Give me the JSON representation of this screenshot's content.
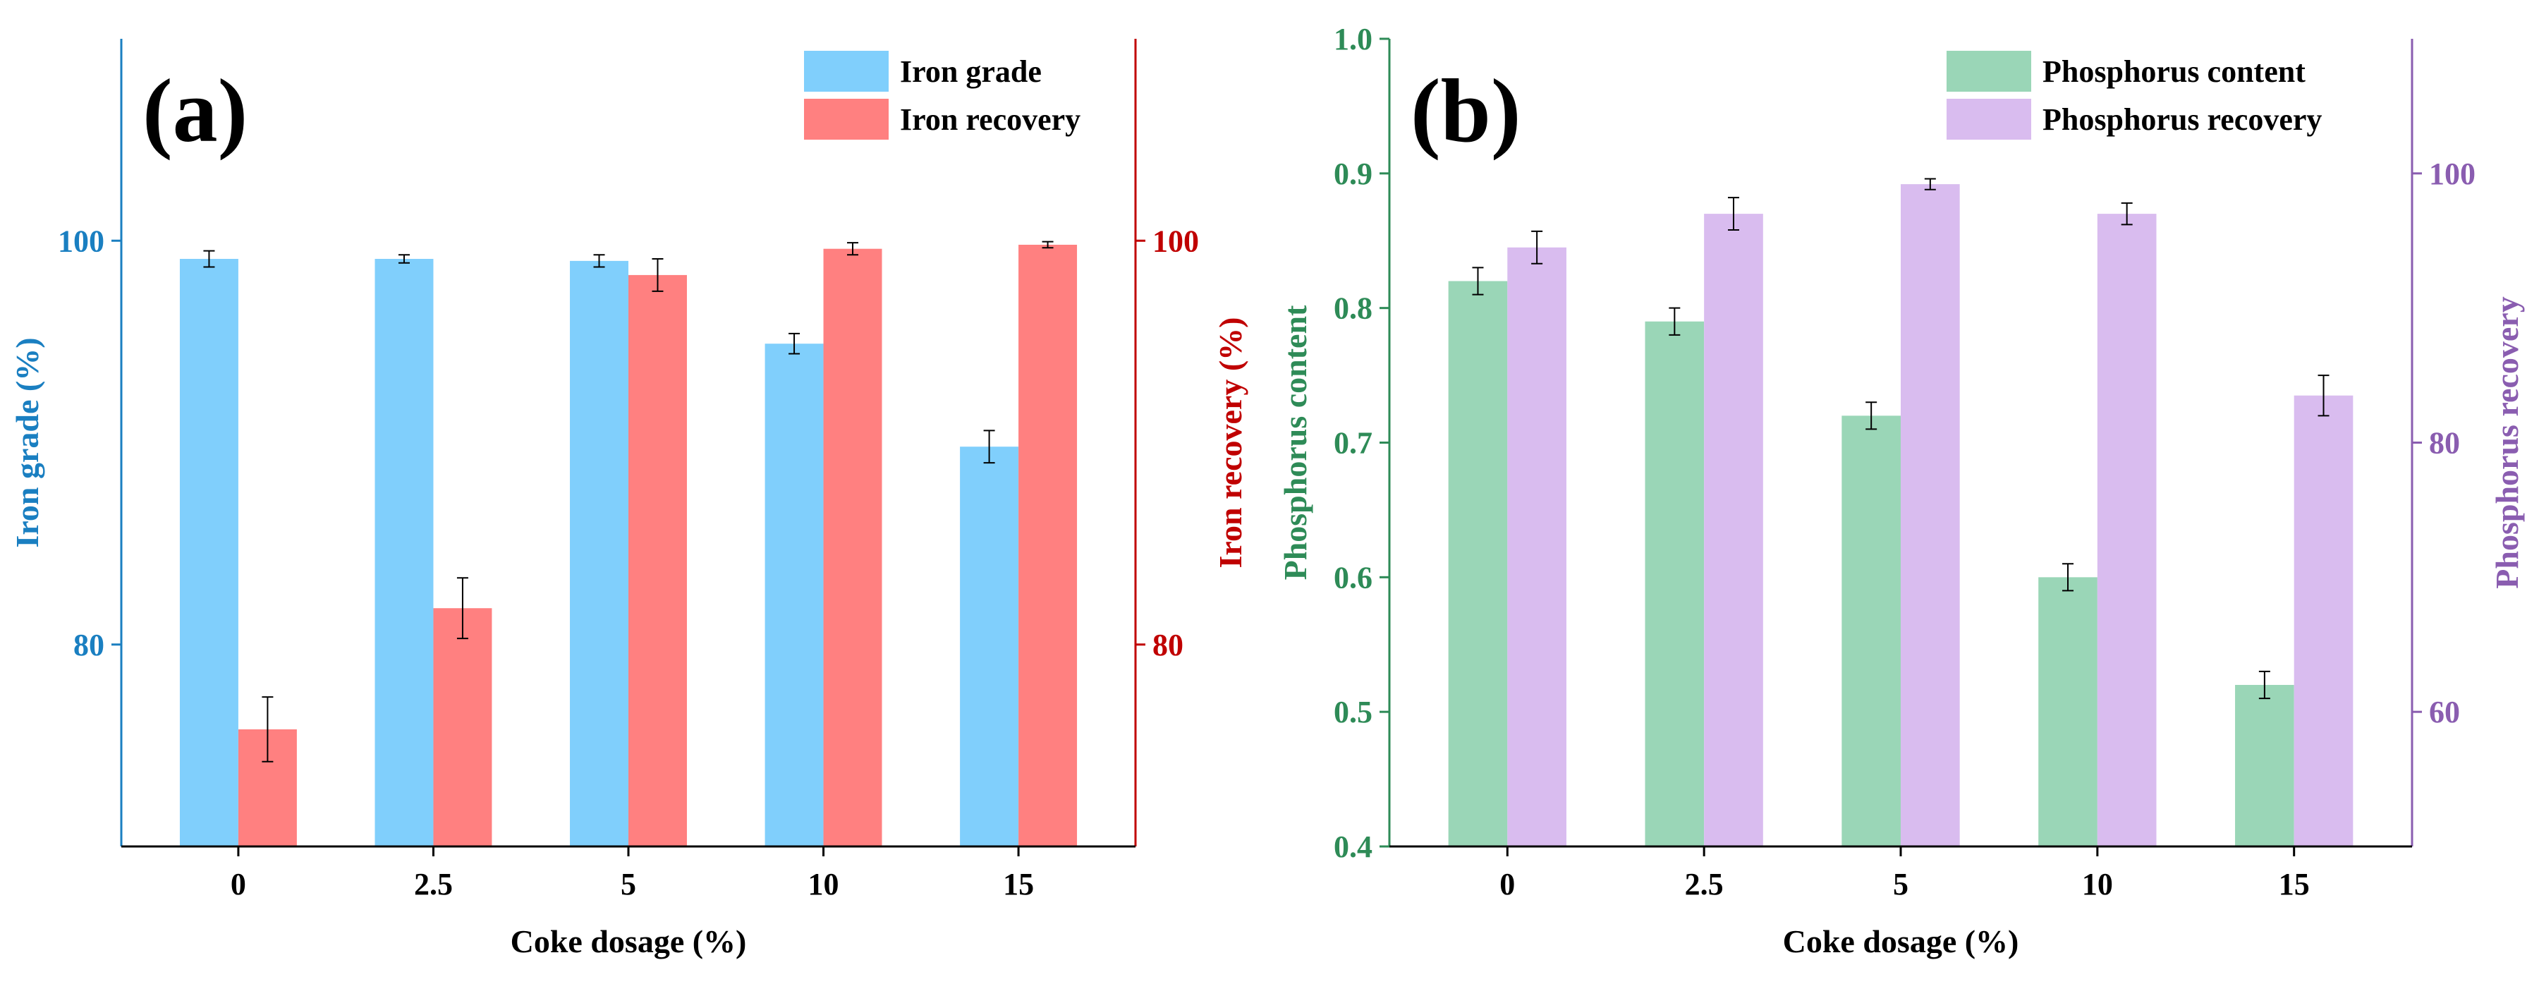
{
  "chart_data": [
    {
      "type": "bar",
      "panel_label": "(a)",
      "categories": [
        "0",
        "2.5",
        "5",
        "10",
        "15"
      ],
      "xlabel": "Coke dosage (%)",
      "left_axis": {
        "label": "Iron grade (%)",
        "color": "#1a7fc1",
        "range": [
          70,
          110
        ],
        "ticks": [
          80,
          100
        ],
        "tick_labels": [
          "80",
          "100"
        ]
      },
      "right_axis": {
        "label": "Iron recovery (%)",
        "color": "#c00000",
        "range": [
          70,
          110
        ],
        "ticks": [
          80,
          100
        ],
        "tick_labels": [
          "80",
          "100"
        ]
      },
      "series": [
        {
          "name": "Iron grade",
          "axis": "left",
          "color": "#80cffc",
          "values": [
            99.1,
            99.1,
            99.0,
            94.9,
            89.8
          ],
          "errors": [
            0.4,
            0.2,
            0.3,
            0.5,
            0.8
          ]
        },
        {
          "name": "Iron recovery",
          "axis": "right",
          "color": "#ff8080",
          "values": [
            75.8,
            81.8,
            98.3,
            99.6,
            99.8
          ],
          "errors": [
            1.6,
            1.5,
            0.8,
            0.3,
            0.15
          ]
        }
      ],
      "legend": [
        "Iron grade",
        "Iron recovery"
      ],
      "legend_position": "top-right"
    },
    {
      "type": "bar",
      "panel_label": "(b)",
      "categories": [
        "0",
        "2.5",
        "5",
        "10",
        "15"
      ],
      "xlabel": "Coke dosage (%)",
      "left_axis": {
        "label": "Phosphorus content",
        "color": "#2e8b57",
        "range": [
          0.4,
          1.0
        ],
        "ticks": [
          0.4,
          0.5,
          0.6,
          0.7,
          0.8,
          0.9,
          1.0
        ],
        "tick_labels": [
          "0.4",
          "0.5",
          "0.6",
          "0.7",
          "0.8",
          "0.9",
          "1.0"
        ]
      },
      "right_axis": {
        "label": "Phosphorus recovery",
        "color": "#8a5db0",
        "range": [
          50,
          110
        ],
        "ticks": [
          60,
          80,
          100
        ],
        "tick_labels": [
          "60",
          "80",
          "100"
        ]
      },
      "series": [
        {
          "name": "Phosphorus content",
          "axis": "left",
          "color": "#9ad6b7",
          "values": [
            0.82,
            0.79,
            0.72,
            0.6,
            0.52
          ],
          "errors": [
            0.01,
            0.01,
            0.01,
            0.01,
            0.01
          ]
        },
        {
          "name": "Phosphorus recovery",
          "axis": "right",
          "color": "#d9bcef",
          "values": [
            94.5,
            97.0,
            99.2,
            97.0,
            83.5
          ],
          "errors": [
            1.2,
            1.2,
            0.4,
            0.8,
            1.5
          ]
        }
      ],
      "legend": [
        "Phosphorus content",
        "Phosphorus recovery"
      ],
      "legend_position": "top-right"
    }
  ]
}
